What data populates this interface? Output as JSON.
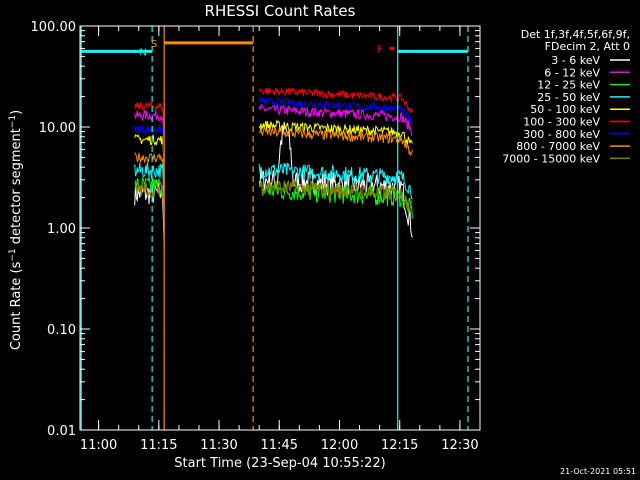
{
  "chart_data": {
    "type": "line",
    "title": "RHESSI Count Rates",
    "xlabel": "Start Time (23-Sep-04 10:55:22)",
    "ylabel_main": "Count Rate (s",
    "ylabel_sup": "−1",
    "ylabel_rest": " detector segment",
    "ylabel_sup2": "−1",
    "ylabel_close": ")",
    "y_scale": "log",
    "ylim": [
      0.01,
      100
    ],
    "xlim": [
      "10:55:22",
      "12:35:00"
    ],
    "x_tick_labels": [
      "11:00",
      "11:15",
      "11:30",
      "11:45",
      "12:00",
      "12:15",
      "12:30"
    ],
    "y_tick_labels": [
      "0.01",
      "0.10",
      "1.00",
      "10.00",
      "100.00"
    ],
    "legend_header": [
      "Det 1f,3f,4f,5f,6f,9f,",
      "FDecim 2, Att 0"
    ],
    "legend_placement": "right, outside plot",
    "series": [
      {
        "name": "3 - 6 keV",
        "color": "#ffffff",
        "level": [
          2.2,
          3.0
        ],
        "noise": 0.12
      },
      {
        "name": "6 - 12 keV",
        "color": "#ff00ff",
        "level": [
          13,
          15
        ],
        "noise": 0.05
      },
      {
        "name": "12 - 25 keV",
        "color": "#00ff00",
        "level": [
          2.6,
          2.4
        ],
        "noise": 0.1
      },
      {
        "name": "25 - 50 keV",
        "color": "#00ffff",
        "level": [
          3.7,
          3.8
        ],
        "noise": 0.08
      },
      {
        "name": "50 - 100 keV",
        "color": "#ffff00",
        "level": [
          7.5,
          10.5
        ],
        "noise": 0.05
      },
      {
        "name": "100 - 300 keV",
        "color": "#ff0000",
        "level": [
          16,
          23
        ],
        "noise": 0.04
      },
      {
        "name": "300 - 800 keV",
        "color": "#0000ff",
        "level": [
          9.5,
          18
        ],
        "noise": 0.04
      },
      {
        "name": "800 - 7000 keV",
        "color": "#ff8c00",
        "level": [
          5,
          9
        ],
        "noise": 0.05
      },
      {
        "name": "7000 - 15000 keV",
        "color": "#808000",
        "level": [
          2.4,
          2.6
        ],
        "noise": 0.08
      }
    ],
    "segments": [
      {
        "start": "11:09:00",
        "end": "11:16:20"
      },
      {
        "start": "11:40:00",
        "end": "12:18:10"
      }
    ],
    "flags": [
      {
        "label": "N",
        "color": "#00ffff",
        "ranges": [
          [
            "10:55:22",
            "11:13:20"
          ],
          [
            "12:14:30",
            "12:32:00"
          ]
        ],
        "value": 56
      },
      {
        "label": "S",
        "color": "#ff8c00",
        "ranges": [
          [
            "11:16:20",
            "11:38:30"
          ]
        ],
        "value": 68
      },
      {
        "label": "F",
        "color": "#ff0000",
        "ranges": [
          [
            "12:12:30",
            "12:13:40"
          ]
        ],
        "value": 60
      }
    ],
    "vertical_lines": [
      {
        "time": "10:55:40",
        "color": "#00ffff",
        "style": "solid"
      },
      {
        "time": "11:13:20",
        "color": "#00ffff",
        "style": "dashed"
      },
      {
        "time": "11:16:20",
        "color": "#ff8c00",
        "style": "solid"
      },
      {
        "time": "11:38:30",
        "color": "#ff8c00",
        "style": "dashed"
      },
      {
        "time": "12:14:30",
        "color": "#00ffff",
        "style": "solid"
      },
      {
        "time": "12:32:00",
        "color": "#00ffff",
        "style": "dashed"
      }
    ],
    "grid": false
  },
  "timestamp": "21-Oct-2021 05:51"
}
